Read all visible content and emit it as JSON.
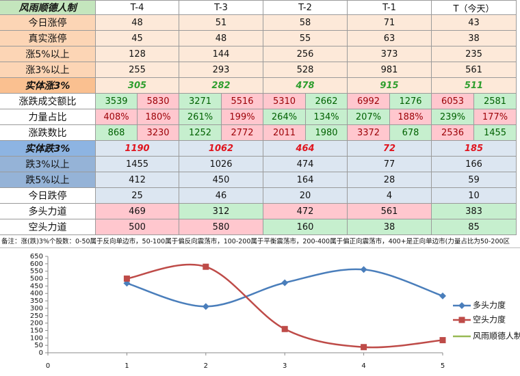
{
  "table": {
    "header": [
      "风雨顺德人制",
      "T-4",
      "T-3",
      "T-2",
      "T-1",
      "T（今天）"
    ],
    "header_fill": "#c4e6bd",
    "rows": [
      {
        "label": "今日涨停",
        "values": [
          48,
          51,
          58,
          71,
          43
        ],
        "label_fill": "#fcd5b5",
        "fill": "#fde9d9"
      },
      {
        "label": "真实涨停",
        "values": [
          45,
          48,
          55,
          63,
          38
        ],
        "label_fill": "#fcd5b5",
        "fill": "#fde9d9"
      },
      {
        "label": "涨5%以上",
        "values": [
          128,
          144,
          256,
          373,
          235
        ],
        "label_fill": "#fcd5b5",
        "fill": "#fde9d9"
      },
      {
        "label": "涨3%以上",
        "values": [
          255,
          293,
          528,
          981,
          561
        ],
        "label_fill": "#fcd5b5",
        "fill": "#fde9d9"
      },
      {
        "label": "实体涨3%",
        "values": [
          305,
          282,
          478,
          915,
          511
        ],
        "label_fill": "#fac090",
        "fill": "#fde9d9",
        "text_color": "#2e9e2e",
        "emphasis": true
      },
      {
        "label": "涨跌成交额比",
        "label_fill": "#ffffff",
        "values": [
          [
            3539,
            5830
          ],
          [
            3271,
            5516
          ],
          [
            5310,
            2662
          ],
          [
            6992,
            1276
          ],
          [
            6053,
            2581
          ]
        ],
        "fills": [
          [
            "#c6efce",
            "#ffc7ce"
          ],
          [
            "#c6efce",
            "#ffc7ce"
          ],
          [
            "#ffc7ce",
            "#c6efce"
          ],
          [
            "#ffc7ce",
            "#c6efce"
          ],
          [
            "#ffc7ce",
            "#c6efce"
          ]
        ]
      },
      {
        "label": "力量占比",
        "label_fill": "#ffffff",
        "values": [
          [
            "408%",
            "180%"
          ],
          [
            "261%",
            "199%"
          ],
          [
            "264%",
            "134%"
          ],
          [
            "207%",
            "188%"
          ],
          [
            "239%",
            "177%"
          ]
        ],
        "fills": [
          [
            "#ffc7ce",
            "#ffc7ce"
          ],
          [
            "#c6efce",
            "#ffc7ce"
          ],
          [
            "#c6efce",
            "#c6efce"
          ],
          [
            "#c6efce",
            "#ffc7ce"
          ],
          [
            "#c6efce",
            "#ffc7ce"
          ]
        ]
      },
      {
        "label": "涨跌数比",
        "label_fill": "#ffffff",
        "values": [
          [
            868,
            3230
          ],
          [
            1252,
            2772
          ],
          [
            2011,
            1980
          ],
          [
            3372,
            678
          ],
          [
            2536,
            1455
          ]
        ],
        "fills": [
          [
            "#c6efce",
            "#ffc7ce"
          ],
          [
            "#c6efce",
            "#ffc7ce"
          ],
          [
            "#ffc7ce",
            "#c6efce"
          ],
          [
            "#ffc7ce",
            "#c6efce"
          ],
          [
            "#ffc7ce",
            "#c6efce"
          ]
        ]
      },
      {
        "label": "实体跌3%",
        "values": [
          1190,
          1062,
          464,
          72,
          185
        ],
        "label_fill": "#8db4e2",
        "fill": "#dce6f1",
        "text_color": "#e0141e",
        "emphasis": true
      },
      {
        "label": "跌3%以上",
        "values": [
          1455,
          1026,
          474,
          77,
          166
        ],
        "label_fill": "#95b3d7",
        "fill": "#dce6f1"
      },
      {
        "label": "跌5%以上",
        "values": [
          412,
          450,
          164,
          28,
          59
        ],
        "label_fill": "#95b3d7",
        "fill": "#dce6f1"
      },
      {
        "label": "今日跌停",
        "values": [
          25,
          46,
          20,
          4,
          10
        ],
        "label_fill": "#ffffff",
        "fill": "#dce6f1"
      },
      {
        "label": "多头力道",
        "values": [
          469,
          312,
          472,
          561,
          383
        ],
        "label_fill": "#ffffff",
        "fills": [
          "#ffc7ce",
          "#c6efce",
          "#ffc7ce",
          "#ffc7ce",
          "#c6efce"
        ]
      },
      {
        "label": "空头力道",
        "values": [
          500,
          580,
          160,
          38,
          85
        ],
        "label_fill": "#ffffff",
        "fills": [
          "#ffc7ce",
          "#ffc7ce",
          "#c6efce",
          "#c6efce",
          "#c6efce"
        ]
      }
    ]
  },
  "note": "备注：涨(跌)3%个股数：0-50属于反向单边市，50-100属于偏反向震荡市，100-200属于平衡震荡市，200-400属于偏正向震荡市，400+是正向单边市(力量占比为50-200区",
  "chart_data": {
    "type": "line",
    "x": [
      1,
      2,
      3,
      4,
      5
    ],
    "xlim": [
      0,
      5
    ],
    "xticks": [
      0,
      1,
      2,
      3,
      4,
      5
    ],
    "ylim": [
      0,
      650
    ],
    "yticks": [
      0,
      50,
      100,
      150,
      200,
      250,
      300,
      350,
      400,
      450,
      500,
      550,
      600,
      650
    ],
    "smooth": true,
    "series": [
      {
        "name": "多头力度",
        "color": "#4a7ebb",
        "marker": "diamond",
        "values": [
          469,
          312,
          472,
          561,
          383
        ]
      },
      {
        "name": "空头力度",
        "color": "#be4b48",
        "marker": "square",
        "values": [
          500,
          580,
          160,
          38,
          85
        ]
      },
      {
        "name": "风雨顺德人制",
        "color": "#98b954",
        "marker": "none",
        "values": [
          null,
          null,
          null,
          null,
          null
        ]
      }
    ]
  }
}
